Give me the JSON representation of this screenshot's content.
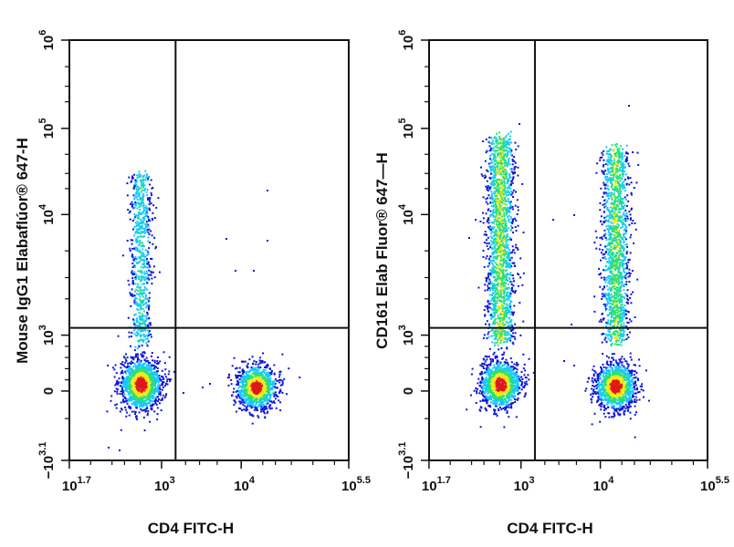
{
  "chart_data": [
    {
      "type": "scatter",
      "style": "flow-cytometry density dot plot",
      "xlabel": "CD4 FITC-H",
      "ylabel": "Mouse IgG1 Elabaflúor® 647-H",
      "x_scale": "biexponential (log)",
      "y_scale": "biexponential (log)",
      "xlim": [
        50,
        316228
      ],
      "ylim": [
        -1259,
        1000000
      ],
      "x_ticks": [
        {
          "base": "10",
          "exp": "1.7"
        },
        {
          "base": "10",
          "exp": "3"
        },
        {
          "base": "10",
          "exp": "4"
        },
        {
          "base": "10",
          "exp": "5.5"
        }
      ],
      "y_ticks": [
        {
          "base": "10",
          "exp": "6"
        },
        {
          "base": "10",
          "exp": "5"
        },
        {
          "base": "10",
          "exp": "4"
        },
        {
          "base": "10",
          "exp": "3"
        },
        {
          "base": "",
          "exp": "",
          "text": "0"
        },
        {
          "base": "−10",
          "exp": "3.1"
        }
      ],
      "gates": {
        "x": 1500,
        "y": 1150
      },
      "populations": [
        {
          "name": "CD4- (left)",
          "x_center": 500,
          "y_center": 0,
          "y_spread_high": 30000,
          "density": "high"
        },
        {
          "name": "CD4+ (right)",
          "x_center": 16000,
          "y_center": 0,
          "y_spread_high": 300,
          "density": "high"
        }
      ],
      "grid": false,
      "legend": "none"
    },
    {
      "type": "scatter",
      "style": "flow-cytometry density dot plot",
      "xlabel": "CD4 FITC-H",
      "ylabel": "CD161 Elab Fluor® 647—H",
      "x_scale": "biexponential (log)",
      "y_scale": "biexponential (log)",
      "xlim": [
        50,
        316228
      ],
      "ylim": [
        -1259,
        1000000
      ],
      "x_ticks": [
        {
          "base": "10",
          "exp": "1.7"
        },
        {
          "base": "10",
          "exp": "3"
        },
        {
          "base": "10",
          "exp": "4"
        },
        {
          "base": "10",
          "exp": "5.5"
        }
      ],
      "y_ticks": [
        {
          "base": "10",
          "exp": "6"
        },
        {
          "base": "10",
          "exp": "5"
        },
        {
          "base": "10",
          "exp": "4"
        },
        {
          "base": "10",
          "exp": "3"
        },
        {
          "base": "",
          "exp": "",
          "text": "0"
        },
        {
          "base": "−10",
          "exp": "3.1"
        }
      ],
      "gates": {
        "x": 1500,
        "y": 1150
      },
      "populations": [
        {
          "name": "CD4- CD161 low",
          "x_center": 500,
          "y_center": 0,
          "density": "high"
        },
        {
          "name": "CD4- CD161 high",
          "x_center": 500,
          "y_center": 10000,
          "density": "high"
        },
        {
          "name": "CD4+ CD161 low",
          "x_center": 16000,
          "y_center": 0,
          "density": "high"
        },
        {
          "name": "CD4+ CD161 high",
          "x_center": 16000,
          "y_center": 8000,
          "density": "medium"
        }
      ],
      "grid": false,
      "legend": "none"
    }
  ],
  "colors": {
    "density_low": "#0a14d8",
    "density_mid": "#16c8ff",
    "density_midhigh": "#27e07a",
    "density_high": "#f4e818",
    "density_peak": "#e01818",
    "frame": "#111111"
  }
}
